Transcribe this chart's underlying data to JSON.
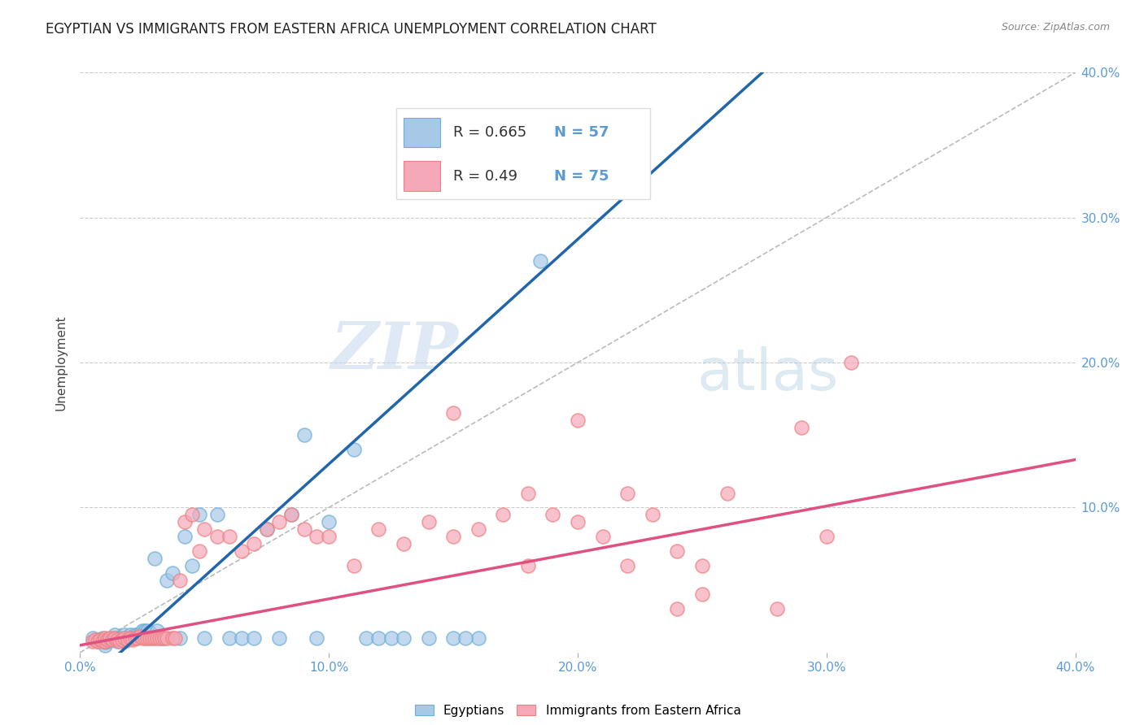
{
  "title": "EGYPTIAN VS IMMIGRANTS FROM EASTERN AFRICA UNEMPLOYMENT CORRELATION CHART",
  "source": "Source: ZipAtlas.com",
  "ylabel": "Unemployment",
  "xlim": [
    0.0,
    0.4
  ],
  "ylim": [
    0.0,
    0.4
  ],
  "xticks": [
    0.0,
    0.1,
    0.2,
    0.3,
    0.4
  ],
  "yticks": [
    0.1,
    0.2,
    0.3,
    0.4
  ],
  "xticklabels": [
    "0.0%",
    "10.0%",
    "20.0%",
    "30.0%",
    "40.0%"
  ],
  "right_yticklabels": [
    "10.0%",
    "20.0%",
    "30.0%",
    "40.0%"
  ],
  "tick_color": "#5b9bd5",
  "egyptian_color": "#a8c8e8",
  "immigrant_color": "#f4a8b8",
  "egyptian_edge_color": "#6baed6",
  "immigrant_edge_color": "#f08080",
  "egyptian_line_color": "#2166ac",
  "immigrant_line_color": "#e05080",
  "diagonal_color": "#bbbbbb",
  "R_egyptian": 0.665,
  "N_egyptian": 57,
  "R_immigrant": 0.49,
  "N_immigrant": 75,
  "legend_labels": [
    "Egyptians",
    "Immigrants from Eastern Africa"
  ],
  "watermark_zip": "ZIP",
  "watermark_atlas": "atlas",
  "egyptian_slope": 1.55,
  "egyptian_intercept": -0.025,
  "immigrant_slope": 0.32,
  "immigrant_intercept": 0.005,
  "egyptian_scatter_x": [
    0.005,
    0.007,
    0.008,
    0.009,
    0.01,
    0.01,
    0.011,
    0.012,
    0.013,
    0.014,
    0.015,
    0.015,
    0.016,
    0.017,
    0.018,
    0.018,
    0.019,
    0.02,
    0.02,
    0.021,
    0.022,
    0.023,
    0.024,
    0.025,
    0.026,
    0.027,
    0.028,
    0.03,
    0.031,
    0.033,
    0.035,
    0.037,
    0.04,
    0.042,
    0.045,
    0.048,
    0.05,
    0.055,
    0.06,
    0.065,
    0.07,
    0.075,
    0.08,
    0.085,
    0.09,
    0.095,
    0.1,
    0.11,
    0.115,
    0.12,
    0.125,
    0.13,
    0.14,
    0.15,
    0.16,
    0.185,
    0.155
  ],
  "egyptian_scatter_y": [
    0.01,
    0.008,
    0.009,
    0.01,
    0.005,
    0.007,
    0.008,
    0.009,
    0.01,
    0.012,
    0.008,
    0.01,
    0.01,
    0.01,
    0.008,
    0.012,
    0.01,
    0.01,
    0.012,
    0.01,
    0.012,
    0.012,
    0.012,
    0.015,
    0.015,
    0.015,
    0.014,
    0.065,
    0.015,
    0.01,
    0.05,
    0.055,
    0.01,
    0.08,
    0.06,
    0.095,
    0.01,
    0.095,
    0.01,
    0.01,
    0.01,
    0.085,
    0.01,
    0.095,
    0.15,
    0.01,
    0.09,
    0.14,
    0.01,
    0.01,
    0.01,
    0.01,
    0.01,
    0.01,
    0.01,
    0.27,
    0.01
  ],
  "immigrant_scatter_x": [
    0.005,
    0.006,
    0.007,
    0.008,
    0.009,
    0.01,
    0.01,
    0.011,
    0.012,
    0.013,
    0.014,
    0.015,
    0.016,
    0.017,
    0.018,
    0.019,
    0.02,
    0.021,
    0.022,
    0.023,
    0.024,
    0.025,
    0.026,
    0.027,
    0.028,
    0.029,
    0.03,
    0.031,
    0.032,
    0.033,
    0.034,
    0.035,
    0.037,
    0.038,
    0.04,
    0.042,
    0.045,
    0.048,
    0.05,
    0.055,
    0.06,
    0.065,
    0.07,
    0.075,
    0.08,
    0.085,
    0.09,
    0.095,
    0.1,
    0.11,
    0.12,
    0.13,
    0.14,
    0.15,
    0.16,
    0.17,
    0.18,
    0.19,
    0.2,
    0.21,
    0.22,
    0.23,
    0.24,
    0.25,
    0.15,
    0.18,
    0.2,
    0.22,
    0.25,
    0.29,
    0.3,
    0.31,
    0.28,
    0.26,
    0.24
  ],
  "immigrant_scatter_y": [
    0.008,
    0.009,
    0.008,
    0.009,
    0.008,
    0.008,
    0.01,
    0.009,
    0.01,
    0.009,
    0.01,
    0.009,
    0.008,
    0.009,
    0.01,
    0.009,
    0.01,
    0.009,
    0.01,
    0.01,
    0.011,
    0.01,
    0.01,
    0.01,
    0.01,
    0.01,
    0.01,
    0.01,
    0.01,
    0.01,
    0.01,
    0.01,
    0.01,
    0.01,
    0.05,
    0.09,
    0.095,
    0.07,
    0.085,
    0.08,
    0.08,
    0.07,
    0.075,
    0.085,
    0.09,
    0.095,
    0.085,
    0.08,
    0.08,
    0.06,
    0.085,
    0.075,
    0.09,
    0.08,
    0.085,
    0.095,
    0.06,
    0.095,
    0.09,
    0.08,
    0.06,
    0.095,
    0.07,
    0.06,
    0.165,
    0.11,
    0.16,
    0.11,
    0.04,
    0.155,
    0.08,
    0.2,
    0.03,
    0.11,
    0.03
  ]
}
